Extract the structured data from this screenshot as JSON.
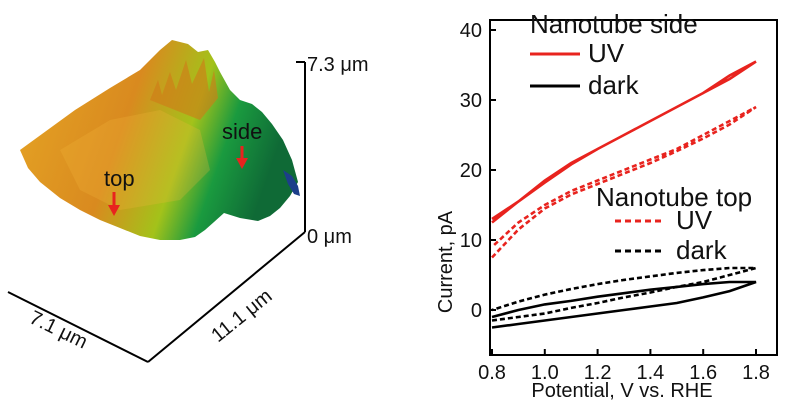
{
  "afm_panel": {
    "z_max_label": "7.3 μm",
    "z_min_label": "0 μm",
    "y_axis_label": "11.1 μm",
    "x_axis_label": "7.1 μm",
    "annotation_top": "top",
    "annotation_side": "side",
    "colors": {
      "arrow": "#e8231e",
      "surface_high": "#d98a1f",
      "surface_mid": "#a3c21a",
      "surface_low": "#0f7a3a",
      "edge": "#1c3e8a"
    }
  },
  "chart_data": {
    "type": "line",
    "xlabel": "Potential, V vs. RHE",
    "ylabel": "Current, pA",
    "xlim": [
      0.8,
      1.8
    ],
    "ylim": [
      -4,
      40
    ],
    "xticks": [
      "0.8",
      "1.0",
      "1.2",
      "1.4",
      "1.6",
      "1.8"
    ],
    "yticks": [
      "0",
      "10",
      "20",
      "30",
      "40"
    ],
    "grid": false,
    "legend_groups": [
      {
        "title": "Nanotube side",
        "placement": "top-right",
        "entries": [
          {
            "label": "UV",
            "color": "#e8231e",
            "dash": "solid"
          },
          {
            "label": "dark",
            "color": "#000000",
            "dash": "solid"
          }
        ]
      },
      {
        "title": "Nanotube top",
        "placement": "center-right",
        "entries": [
          {
            "label": "UV",
            "color": "#e8231e",
            "dash": "dashed"
          },
          {
            "label": "dark",
            "color": "#000000",
            "dash": "dashed"
          }
        ]
      }
    ],
    "series": [
      {
        "name": "UV",
        "group": "Nanotube side",
        "color": "#e8231e",
        "dash": "solid",
        "x": [
          0.8,
          0.9,
          1.0,
          1.1,
          1.2,
          1.3,
          1.4,
          1.5,
          1.6,
          1.7,
          1.8,
          1.7,
          1.6,
          1.5,
          1.4,
          1.3,
          1.2,
          1.1,
          1.0,
          0.9,
          0.8
        ],
        "y": [
          12.5,
          15.5,
          18.5,
          21.0,
          23.0,
          25.0,
          27.0,
          29.0,
          31.0,
          33.0,
          35.5,
          33.5,
          31.0,
          29.0,
          27.0,
          25.0,
          23.0,
          20.8,
          18.2,
          15.5,
          13.0
        ]
      },
      {
        "name": "dark",
        "group": "Nanotube side",
        "color": "#000000",
        "dash": "solid",
        "x": [
          0.8,
          0.9,
          1.0,
          1.1,
          1.2,
          1.3,
          1.4,
          1.5,
          1.6,
          1.7,
          1.8,
          1.7,
          1.6,
          1.5,
          1.4,
          1.3,
          1.2,
          1.1,
          1.0,
          0.9,
          0.8
        ],
        "y": [
          -2.5,
          -2.0,
          -1.5,
          -1.0,
          -0.5,
          0.0,
          0.5,
          1.0,
          1.8,
          2.7,
          4.0,
          4.0,
          3.7,
          3.3,
          2.9,
          2.4,
          1.9,
          1.3,
          0.8,
          0.0,
          -1.0
        ]
      },
      {
        "name": "UV",
        "group": "Nanotube top",
        "color": "#e8231e",
        "dash": "dashed",
        "x": [
          0.8,
          0.9,
          1.0,
          1.1,
          1.2,
          1.3,
          1.4,
          1.5,
          1.6,
          1.7,
          1.8,
          1.7,
          1.6,
          1.5,
          1.4,
          1.3,
          1.2,
          1.1,
          1.0,
          0.9,
          0.8
        ],
        "y": [
          7.5,
          11.5,
          14.5,
          16.5,
          18.0,
          19.5,
          21.0,
          22.7,
          24.5,
          26.5,
          29.0,
          27.0,
          25.0,
          23.0,
          21.5,
          20.0,
          18.5,
          17.0,
          15.0,
          12.5,
          9.0
        ]
      },
      {
        "name": "dark",
        "group": "Nanotube top",
        "color": "#000000",
        "dash": "dashed",
        "x": [
          0.8,
          0.9,
          1.0,
          1.1,
          1.2,
          1.3,
          1.4,
          1.5,
          1.6,
          1.7,
          1.8,
          1.7,
          1.6,
          1.5,
          1.4,
          1.3,
          1.2,
          1.1,
          1.0,
          0.9,
          0.8
        ],
        "y": [
          -1.5,
          -1.0,
          -0.5,
          0.3,
          1.0,
          1.8,
          2.5,
          3.3,
          4.0,
          5.0,
          6.0,
          6.0,
          5.7,
          5.3,
          4.8,
          4.3,
          3.7,
          3.0,
          2.2,
          1.2,
          0.0
        ]
      }
    ]
  }
}
